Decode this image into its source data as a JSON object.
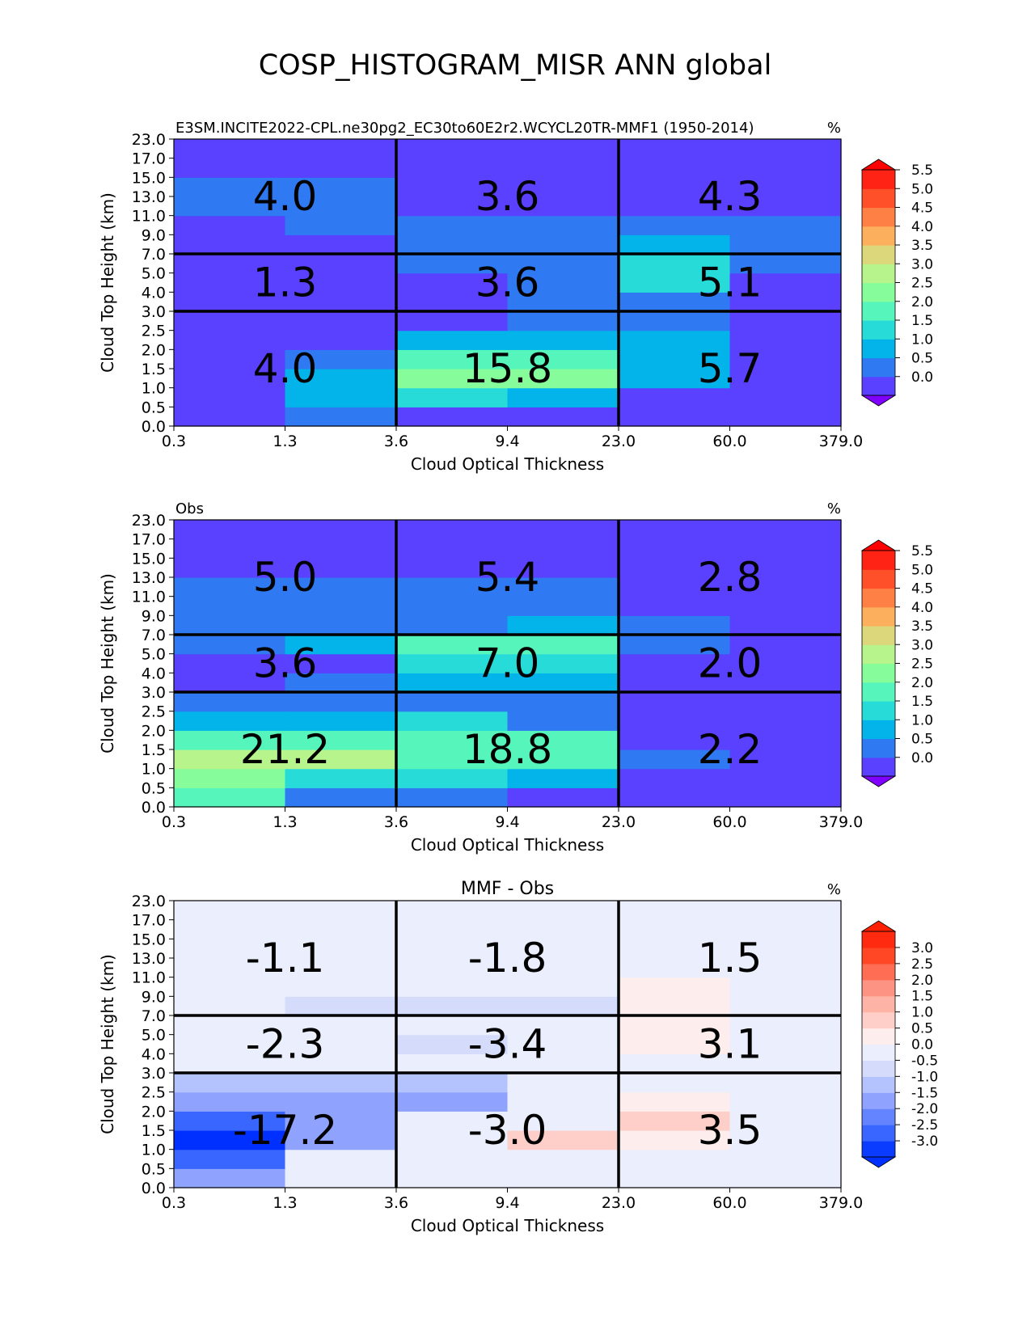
{
  "figure": {
    "title": "COSP_HISTOGRAM_MISR ANN global"
  },
  "chart_data": [
    {
      "type": "heatmap",
      "title": "",
      "left_title": "E3SM.INCITE2022-CPL.ne30pg2_EC30to60E2r2.WCYCL20TR-MMF1 (1950-2014)",
      "units": "%",
      "xlabel": "Cloud Optical Thickness",
      "ylabel": "Cloud Top Height (km)",
      "x_ticks": [
        "0.3",
        "1.3",
        "3.6",
        "9.4",
        "23.0",
        "60.0",
        "379.0"
      ],
      "y_ticks": [
        "0.0",
        "0.5",
        "1.0",
        "1.5",
        "2.0",
        "2.5",
        "3.0",
        "4.0",
        "5.0",
        "7.0",
        "9.0",
        "11.0",
        "13.0",
        "15.0",
        "17.0",
        "23.0"
      ],
      "values": [
        [
          0.2,
          0.6,
          0.2,
          0.2,
          0.2,
          0.2
        ],
        [
          0.2,
          1.3,
          1.8,
          1.3,
          0.2,
          0.2
        ],
        [
          0.2,
          1.3,
          2.8,
          2.8,
          1.3,
          0.2
        ],
        [
          0.2,
          0.7,
          2.3,
          2.3,
          1.3,
          0.2
        ],
        [
          0.2,
          0.2,
          1.3,
          1.3,
          1.3,
          0.2
        ],
        [
          0.2,
          0.2,
          0.2,
          0.7,
          0.7,
          0.2
        ],
        [
          0.2,
          0.2,
          0.2,
          0.7,
          0.7,
          0.2
        ],
        [
          0.2,
          0.2,
          0.2,
          0.7,
          1.8,
          0.2
        ],
        [
          0.2,
          0.2,
          0.7,
          0.7,
          1.8,
          0.7
        ],
        [
          0.2,
          0.2,
          0.7,
          0.7,
          1.3,
          0.7
        ],
        [
          0.2,
          0.7,
          0.7,
          0.7,
          0.7,
          0.7
        ],
        [
          0.7,
          0.7,
          0.2,
          0.2,
          0.2,
          0.2
        ],
        [
          0.7,
          0.7,
          0.2,
          0.2,
          0.2,
          0.2
        ],
        [
          0.2,
          0.2,
          0.2,
          0.2,
          0.2,
          0.2
        ],
        [
          0.2,
          0.2,
          0.2,
          0.2,
          0.2,
          0.2
        ]
      ],
      "annotations": [
        {
          "col": 0,
          "row": 2,
          "text": "4.0"
        },
        {
          "col": 1,
          "row": 2,
          "text": "3.6"
        },
        {
          "col": 2,
          "row": 2,
          "text": "4.3"
        },
        {
          "col": 0,
          "row": 1,
          "text": "1.3"
        },
        {
          "col": 1,
          "row": 1,
          "text": "3.6"
        },
        {
          "col": 2,
          "row": 1,
          "text": "5.1"
        },
        {
          "col": 0,
          "row": 0,
          "text": "4.0"
        },
        {
          "col": 1,
          "row": 0,
          "text": "15.8"
        },
        {
          "col": 2,
          "row": 0,
          "text": "5.7"
        }
      ],
      "colorbar": {
        "ticks": [
          "0.0",
          "0.5",
          "1.0",
          "1.5",
          "2.0",
          "2.5",
          "3.0",
          "3.5",
          "4.0",
          "4.5",
          "5.0",
          "5.5"
        ],
        "levels": [
          0.0,
          0.5,
          1.0,
          1.5,
          2.0,
          2.5,
          3.0,
          3.5,
          4.0,
          4.5,
          5.0,
          5.5
        ],
        "colors": [
          "#5a40ff",
          "#2f79f2",
          "#02b4ea",
          "#27dbd9",
          "#55f5bb",
          "#86fc9a",
          "#b7f58c",
          "#dcd77a",
          "#fcb05e",
          "#ff8044",
          "#ff502a",
          "#ff2315"
        ],
        "under_color": "#7f00ff",
        "over_color": "#ff0000"
      }
    },
    {
      "type": "heatmap",
      "title": "",
      "left_title": "Obs",
      "units": "%",
      "xlabel": "Cloud Optical Thickness",
      "ylabel": "Cloud Top Height (km)",
      "x_ticks": [
        "0.3",
        "1.3",
        "3.6",
        "9.4",
        "23.0",
        "60.0",
        "379.0"
      ],
      "y_ticks": [
        "0.0",
        "0.5",
        "1.0",
        "1.5",
        "2.0",
        "2.5",
        "3.0",
        "4.0",
        "5.0",
        "7.0",
        "9.0",
        "11.0",
        "13.0",
        "15.0",
        "17.0",
        "23.0"
      ],
      "values": [
        [
          2.3,
          0.7,
          0.7,
          0.2,
          0.2,
          0.2
        ],
        [
          2.8,
          1.8,
          1.8,
          1.3,
          0.2,
          0.2
        ],
        [
          3.3,
          3.3,
          2.3,
          2.3,
          0.7,
          0.2
        ],
        [
          2.3,
          2.3,
          2.3,
          2.3,
          0.2,
          0.2
        ],
        [
          1.3,
          1.3,
          1.8,
          0.7,
          0.2,
          0.2
        ],
        [
          0.7,
          0.7,
          0.7,
          0.7,
          0.2,
          0.2
        ],
        [
          0.2,
          0.7,
          1.3,
          1.3,
          0.2,
          0.2
        ],
        [
          0.2,
          0.2,
          1.8,
          1.8,
          0.2,
          0.2
        ],
        [
          0.7,
          1.3,
          2.3,
          2.3,
          0.7,
          0.2
        ],
        [
          0.7,
          0.7,
          0.7,
          1.3,
          0.7,
          0.2
        ],
        [
          0.7,
          0.7,
          0.7,
          0.7,
          0.2,
          0.2
        ],
        [
          0.7,
          0.7,
          0.7,
          0.7,
          0.2,
          0.2
        ],
        [
          0.2,
          0.2,
          0.2,
          0.2,
          0.2,
          0.2
        ],
        [
          0.2,
          0.2,
          0.2,
          0.2,
          0.2,
          0.2
        ],
        [
          0.2,
          0.2,
          0.2,
          0.2,
          0.2,
          0.2
        ]
      ],
      "annotations": [
        {
          "col": 0,
          "row": 2,
          "text": "5.0"
        },
        {
          "col": 1,
          "row": 2,
          "text": "5.4"
        },
        {
          "col": 2,
          "row": 2,
          "text": "2.8"
        },
        {
          "col": 0,
          "row": 1,
          "text": "3.6"
        },
        {
          "col": 1,
          "row": 1,
          "text": "7.0"
        },
        {
          "col": 2,
          "row": 1,
          "text": "2.0"
        },
        {
          "col": 0,
          "row": 0,
          "text": "21.2"
        },
        {
          "col": 1,
          "row": 0,
          "text": "18.8"
        },
        {
          "col": 2,
          "row": 0,
          "text": "2.2"
        }
      ],
      "colorbar": {
        "ticks": [
          "0.0",
          "0.5",
          "1.0",
          "1.5",
          "2.0",
          "2.5",
          "3.0",
          "3.5",
          "4.0",
          "4.5",
          "5.0",
          "5.5"
        ],
        "levels": [
          0.0,
          0.5,
          1.0,
          1.5,
          2.0,
          2.5,
          3.0,
          3.5,
          4.0,
          4.5,
          5.0,
          5.5
        ],
        "colors": [
          "#5a40ff",
          "#2f79f2",
          "#02b4ea",
          "#27dbd9",
          "#55f5bb",
          "#86fc9a",
          "#b7f58c",
          "#dcd77a",
          "#fcb05e",
          "#ff8044",
          "#ff502a",
          "#ff2315"
        ],
        "under_color": "#7f00ff",
        "over_color": "#ff0000"
      }
    },
    {
      "type": "heatmap",
      "title": "MMF - Obs",
      "left_title": "",
      "units": "%",
      "xlabel": "Cloud Optical Thickness",
      "ylabel": "Cloud Top Height (km)",
      "x_ticks": [
        "0.3",
        "1.3",
        "3.6",
        "9.4",
        "23.0",
        "60.0",
        "379.0"
      ],
      "y_ticks": [
        "0.0",
        "0.5",
        "1.0",
        "1.5",
        "2.0",
        "2.5",
        "3.0",
        "4.0",
        "5.0",
        "7.0",
        "9.0",
        "11.0",
        "13.0",
        "15.0",
        "17.0",
        "23.0"
      ],
      "values": [
        [
          -1.3,
          0.0,
          0.0,
          0.0,
          0.0,
          0.0
        ],
        [
          -2.3,
          0.0,
          0.3,
          0.3,
          0.0,
          0.0
        ],
        [
          -3.3,
          -1.3,
          0.3,
          1.3,
          0.8,
          0.0
        ],
        [
          -2.3,
          -1.3,
          0.0,
          0.3,
          1.3,
          0.3
        ],
        [
          -1.3,
          -1.3,
          -1.3,
          0.0,
          0.8,
          0.3
        ],
        [
          -0.8,
          -0.8,
          -0.8,
          0.0,
          0.3,
          0.3
        ],
        [
          0.0,
          0.0,
          0.0,
          0.0,
          0.3,
          0.3
        ],
        [
          0.0,
          0.0,
          -0.3,
          0.0,
          0.8,
          0.3
        ],
        [
          0.0,
          0.0,
          0.0,
          0.0,
          0.8,
          0.3
        ],
        [
          0.0,
          -0.3,
          -0.3,
          -0.3,
          0.8,
          0.3
        ],
        [
          0.0,
          0.0,
          0.0,
          0.0,
          0.8,
          0.3
        ],
        [
          0.0,
          0.0,
          0.0,
          0.0,
          0.3,
          0.3
        ],
        [
          0.3,
          0.0,
          0.0,
          0.0,
          0.3,
          0.3
        ],
        [
          0.3,
          0.0,
          0.0,
          0.0,
          0.3,
          0.3
        ],
        [
          0.0,
          0.0,
          0.0,
          0.0,
          0.0,
          0.0
        ]
      ],
      "annotations": [
        {
          "col": 0,
          "row": 2,
          "text": "-1.1"
        },
        {
          "col": 1,
          "row": 2,
          "text": "-1.8"
        },
        {
          "col": 2,
          "row": 2,
          "text": "1.5"
        },
        {
          "col": 0,
          "row": 1,
          "text": "-2.3"
        },
        {
          "col": 1,
          "row": 1,
          "text": "-3.4"
        },
        {
          "col": 2,
          "row": 1,
          "text": "3.1"
        },
        {
          "col": 0,
          "row": 0,
          "text": "-17.2"
        },
        {
          "col": 1,
          "row": 0,
          "text": "-3.0"
        },
        {
          "col": 2,
          "row": 0,
          "text": "3.5"
        }
      ],
      "colorbar": {
        "ticks": [
          "-3.0",
          "-2.5",
          "-2.0",
          "-1.5",
          "-1.0",
          "-0.5",
          "0.0",
          "0.5",
          "1.0",
          "1.5",
          "2.0",
          "2.5",
          "3.0"
        ],
        "levels": [
          -3.0,
          -2.5,
          -2.0,
          -1.5,
          -1.0,
          -0.5,
          0.0,
          0.5,
          1.0,
          1.5,
          2.0,
          2.5,
          3.0
        ],
        "colors": [
          "#0a3cff",
          "#3866ff",
          "#6484ff",
          "#8fa3fe",
          "#b4c3fd",
          "#d5dcfb",
          "#eaeefd",
          "#fdedec",
          "#fdcfc8",
          "#fdb3a5",
          "#fd9483",
          "#fe6d54",
          "#ff4726",
          "#ff2a10"
        ],
        "under_color": "#0030ff",
        "over_color": "#ff2000"
      }
    }
  ]
}
